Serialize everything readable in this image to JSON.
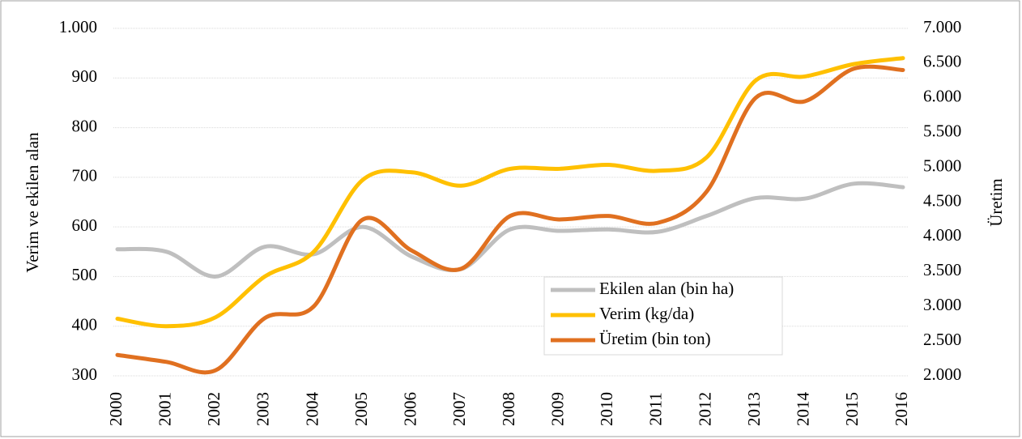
{
  "chart_data": {
    "type": "line",
    "categories": [
      "2000",
      "2001",
      "2002",
      "2003",
      "2004",
      "2005",
      "2006",
      "2007",
      "2008",
      "2009",
      "2010",
      "2011",
      "2012",
      "2013",
      "2014",
      "2015",
      "2016"
    ],
    "series": [
      {
        "name": "Ekilen alan  (bin ha)",
        "color": "#bfbfbf",
        "values": [
          555,
          550,
          500,
          560,
          545,
          600,
          540,
          515,
          595,
          592,
          595,
          590,
          622,
          658,
          657,
          687,
          680
        ]
      },
      {
        "name": "Verim (kg/da)",
        "color": "#ffc000",
        "values": [
          415,
          400,
          418,
          500,
          550,
          695,
          710,
          683,
          717,
          717,
          725,
          713,
          740,
          895,
          903,
          928,
          940
        ]
      },
      {
        "name": "Üretim (bin ton)",
        "color": "#e07020",
        "axis": "y2",
        "values": [
          2300,
          2200,
          2080,
          2830,
          3000,
          4250,
          3800,
          3540,
          4300,
          4250,
          4300,
          4200,
          4650,
          6000,
          5950,
          6420,
          6400
        ]
      }
    ],
    "ylabel": "Verim ve ekilen alan",
    "y2label": "Üretim",
    "ylim": [
      300,
      1000
    ],
    "yticks": [
      300,
      400,
      500,
      600,
      700,
      800,
      900,
      {
        "value": 1000,
        "label": "1.000"
      }
    ],
    "y2lim": [
      2000,
      7000
    ],
    "y2ticks": [
      {
        "value": 2000,
        "label": "2.000"
      },
      {
        "value": 2500,
        "label": "2.500"
      },
      {
        "value": 3000,
        "label": "3.000"
      },
      {
        "value": 3500,
        "label": "3.500"
      },
      {
        "value": 4000,
        "label": "4.000"
      },
      {
        "value": 4500,
        "label": "4.500"
      },
      {
        "value": 5000,
        "label": "5.000"
      },
      {
        "value": 5500,
        "label": "5.500"
      },
      {
        "value": 6000,
        "label": "6.000"
      },
      {
        "value": 6500,
        "label": "6.500"
      },
      {
        "value": 7000,
        "label": "7.000"
      }
    ],
    "grid": true
  }
}
